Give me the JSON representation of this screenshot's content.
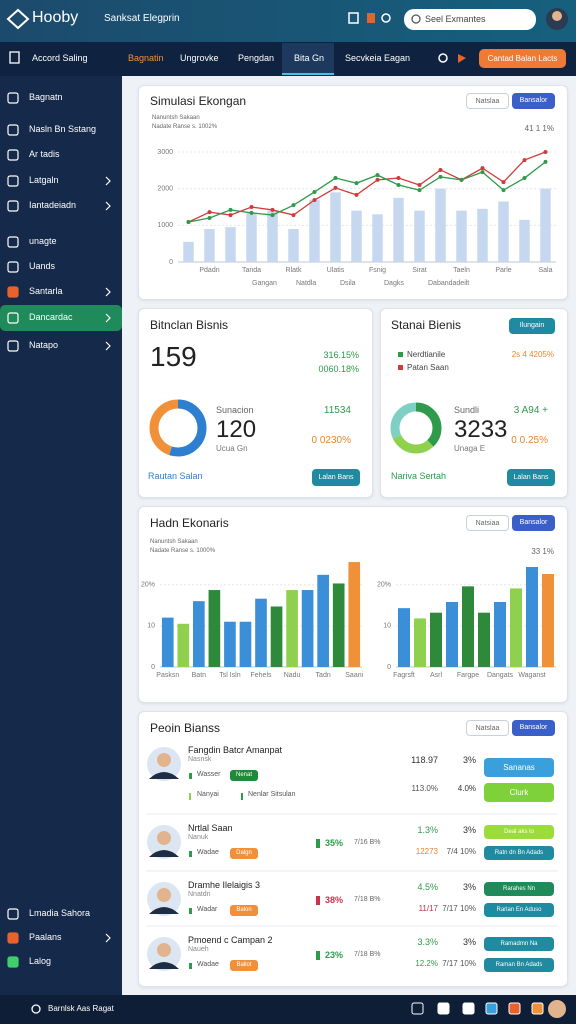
{
  "header": {
    "logo": "Hooby",
    "title": "Sanksat Elegprin",
    "search": "Seel Exmantes"
  },
  "nav": {
    "left": "Accord Saling",
    "tabs": [
      "Bagnatin",
      "Ungrovke",
      "Pengdan",
      "Bita Gn",
      "Secvkeia Eagan"
    ],
    "active_tab": 0,
    "highlight_tab": 3,
    "button": "Cantad Balan Lacts"
  },
  "sidebar": {
    "items": [
      {
        "label": "Bagnatn"
      },
      {
        "label": "Nasln Bn Sstang"
      },
      {
        "label": "Ar tadis"
      },
      {
        "label": "Latgaln",
        "chevron": true
      },
      {
        "label": "Iantadeiadn",
        "chevron": true
      },
      {
        "label": "unagte"
      },
      {
        "label": "Uands"
      },
      {
        "label": "Santarla",
        "chevron": true,
        "icon_color": "#e8622c"
      },
      {
        "label": "Dancardac",
        "chevron": true
      },
      {
        "label": "Natapo",
        "chevron": true
      }
    ],
    "active": 8,
    "bottom": [
      {
        "label": "Lmadia Sahora"
      },
      {
        "label": "Paalans",
        "chevron": true,
        "icon_color": "#e8622c"
      },
      {
        "label": "Lalog",
        "icon_color": "#3fcf6a"
      }
    ]
  },
  "footer": {
    "text": "Barnlsk Aas Ragat"
  },
  "cards": {
    "sim": {
      "title": "Simulasi Ekongan",
      "buttons": [
        "Natslaa",
        "Bansalor"
      ],
      "subtitle": [
        "Nanuntsh Sakaan",
        "Nadate Ranse s. 1002%"
      ],
      "corner": "41 1 1%"
    },
    "left": {
      "title": "Bitnclan Bisnis",
      "big": "159",
      "stats": [
        {
          "text": "316.15%",
          "color": "#2e9a4a"
        },
        {
          "text": "0060.18%",
          "color": "#2e9a4a"
        }
      ],
      "donut": {
        "values": [
          55,
          45
        ],
        "colors": [
          "#2f7fd0",
          "#f0913a"
        ]
      },
      "center_top": "Sunacion",
      "center_value": "120",
      "center_bottom": "Ucua Gn",
      "side": [
        {
          "text": "11534",
          "color": "#2e9a4a"
        },
        {
          "text": "0 0230%",
          "color": "#e8862c"
        }
      ],
      "link": "Rautan Salan",
      "button": "Lalan Bans"
    },
    "right": {
      "title": "Stanai Bienis",
      "top_button": "Ilungain",
      "legend": [
        {
          "text": "Nerdtianile",
          "color": "#2e9a4a"
        },
        {
          "text": "Patan Saan",
          "color": "#d23a3a"
        }
      ],
      "legend_value": "2s 4 4205%",
      "donut": {
        "values": [
          38,
          30,
          32
        ],
        "colors": [
          "#2e9a4a",
          "#8fd14f",
          "#7fd0c4"
        ]
      },
      "center_top": "Sundli",
      "center_value": "3233",
      "center_bottom": "Unaga E",
      "side": [
        {
          "text": "3 A94 +",
          "color": "#2e9a4a"
        },
        {
          "text": "0 0.25%",
          "color": "#e8862c"
        }
      ],
      "link": "Nariva Sertah",
      "button": "Lalan Bans"
    },
    "econ": {
      "title": "Hadn Ekonaris",
      "buttons": [
        "Natsiaa",
        "Bansalor"
      ],
      "subtitle": [
        "Nanuntsh Sakaan",
        "Nadate Ranse s. 1000%"
      ],
      "corner": "33 1%"
    },
    "people": {
      "title": "Peoin Bianss",
      "buttons": [
        "Natslaa",
        "Bansalor"
      ],
      "rows": [
        {
          "name": "Fangdin Batcr Amanpat",
          "sub": "Nasnsk",
          "tag": "Wasser",
          "pill": "Nenat",
          "pill_color": "#1f8a3a",
          "extra": [
            "Nanyai",
            "Nenlar Sitsulan"
          ],
          "cols": [
            "118.97",
            "3%",
            "113.0%",
            "4.0%"
          ],
          "col_colors": [
            "#333333",
            "#333333",
            "#555555",
            "#333333"
          ],
          "buttons": [
            {
              "label": "Sananas",
              "color": "#3aa0dc"
            },
            {
              "label": "Clurk",
              "color": "#7fd13a"
            }
          ]
        },
        {
          "name": "Nrtlal Saan",
          "sub": "Nanuk",
          "tag": "Wadae",
          "pill": "Dalgn",
          "pill_color": "#f0913a",
          "pct": "35%",
          "pct_color": "#2e9a4a",
          "pct2": "7/16 B%",
          "cols": [
            "1.3%",
            "3%",
            "12273",
            "7/4 10%"
          ],
          "col_colors": [
            "#2e9a4a",
            "#333333",
            "#e8862c",
            "#555555"
          ],
          "buttons": [
            {
              "label": "Deal aks lo",
              "color": "#9cdc3a"
            },
            {
              "label": "Ratn dn Bn Adads",
              "color": "#1f8aa0"
            }
          ]
        },
        {
          "name": "Dramhe Ilelaigis 3",
          "sub": "Nnatdn",
          "tag": "Wadar",
          "pill": "Balon",
          "pill_color": "#f0913a",
          "pct": "38%",
          "pct_color": "#c8334a",
          "pct2": "7/18 B%",
          "cols": [
            "4.5%",
            "3%",
            "11/17",
            "7/17 10%"
          ],
          "col_colors": [
            "#2e9a4a",
            "#333333",
            "#c8334a",
            "#555555"
          ],
          "buttons": [
            {
              "label": "Rarahes Nn",
              "color": "#1f8a5a"
            },
            {
              "label": "Rarlan En Aduso",
              "color": "#1f8aa0"
            }
          ]
        },
        {
          "name": "Pmoend c Campan 2",
          "sub": "Naueh",
          "tag": "Wadae",
          "pill": "Ballot",
          "pill_color": "#f0913a",
          "pct": "23%",
          "pct_color": "#2e9a4a",
          "pct2": "7/18 B%",
          "cols": [
            "3.3%",
            "3%",
            "12.2%",
            "7/17 10%"
          ],
          "col_colors": [
            "#2e9a4a",
            "#333333",
            "#2e9a4a",
            "#555555"
          ],
          "buttons": [
            {
              "label": "Ramadmn Na",
              "color": "#1f8aa0"
            },
            {
              "label": "Raman Bn Adads",
              "color": "#1f8aa0"
            }
          ]
        }
      ]
    }
  },
  "chart_data": [
    {
      "type": "combo",
      "categories": [
        null,
        "Pdadn",
        null,
        "Tanda",
        null,
        "Rlatk",
        null,
        "Ulatis",
        null,
        "Fsnig",
        null,
        "Sirat",
        null,
        "Taeln",
        null,
        "Parle",
        null,
        "Sala"
      ],
      "series": [
        {
          "name": "Natdla",
          "type": "bar",
          "color": "#c6d8ef",
          "values": [
            550,
            900,
            950,
            1350,
            1400,
            900,
            1700,
            1900,
            1400,
            1300,
            1750,
            1400,
            2000,
            1400,
            1450,
            1650,
            1150,
            2000
          ]
        },
        {
          "name": "Dagks",
          "type": "line",
          "color": "#d23a3a",
          "values": [
            1090,
            1360,
            1280,
            1500,
            1420,
            1280,
            1690,
            2020,
            1830,
            2240,
            2290,
            2100,
            2510,
            2240,
            2560,
            2180,
            2780,
            3000
          ]
        },
        {
          "name": "Dsila",
          "type": "line",
          "color": "#2e9a4a",
          "values": [
            1090,
            1200,
            1420,
            1340,
            1280,
            1550,
            1910,
            2290,
            2150,
            2370,
            2100,
            1960,
            2320,
            2240,
            2450,
            1960,
            2290,
            2730
          ]
        }
      ],
      "legend_extra": [
        "Gangan",
        "Dabandadeilt"
      ],
      "ylim": [
        0,
        3000
      ],
      "yticks": [
        0,
        1000,
        2000,
        3000
      ],
      "grid": true
    },
    {
      "type": "bar",
      "categories": [
        "Pasksn",
        null,
        "Batn",
        null,
        "Tsl Isln",
        null,
        "Fehels",
        null,
        "Nadu",
        null,
        "Tadn",
        null,
        "Saani"
      ],
      "values": [
        12,
        10.5,
        16,
        18.7,
        11,
        11,
        16.6,
        14.7,
        18.7,
        18.7,
        22.4,
        20.3,
        25.5
      ],
      "colors": [
        "#3a8fd8",
        "#8fd14f",
        "#3a8fd8",
        "#2e8a3a",
        "#3a8fd8",
        "#3a8fd8",
        "#3a8fd8",
        "#2e8a3a",
        "#8fd14f",
        "#3a8fd8",
        "#3a8fd8",
        "#2e8a3a",
        "#f0913a"
      ],
      "ylim": [
        0,
        26
      ],
      "yticks": [
        0,
        10,
        {
          "value": 20,
          "label": "20%"
        }
      ],
      "grid": true
    },
    {
      "type": "bar",
      "categories": [
        "Fagrsft",
        null,
        "Asrl",
        null,
        "Fargpe",
        null,
        "Dangats",
        null,
        "Waganst",
        null
      ],
      "values": [
        14.3,
        11.8,
        13.2,
        15.8,
        19.6,
        13.2,
        15.8,
        19.1,
        24.3,
        22.6
      ],
      "colors": [
        "#3a8fd8",
        "#8fd14f",
        "#2e8a3a",
        "#3a8fd8",
        "#2e8a3a",
        "#2e8a3a",
        "#3a8fd8",
        "#8fd14f",
        "#3a8fd8",
        "#f0913a"
      ],
      "ylim": [
        0,
        26
      ],
      "yticks": [
        0,
        10,
        {
          "value": 20,
          "label": "20%"
        }
      ],
      "grid": true
    }
  ]
}
